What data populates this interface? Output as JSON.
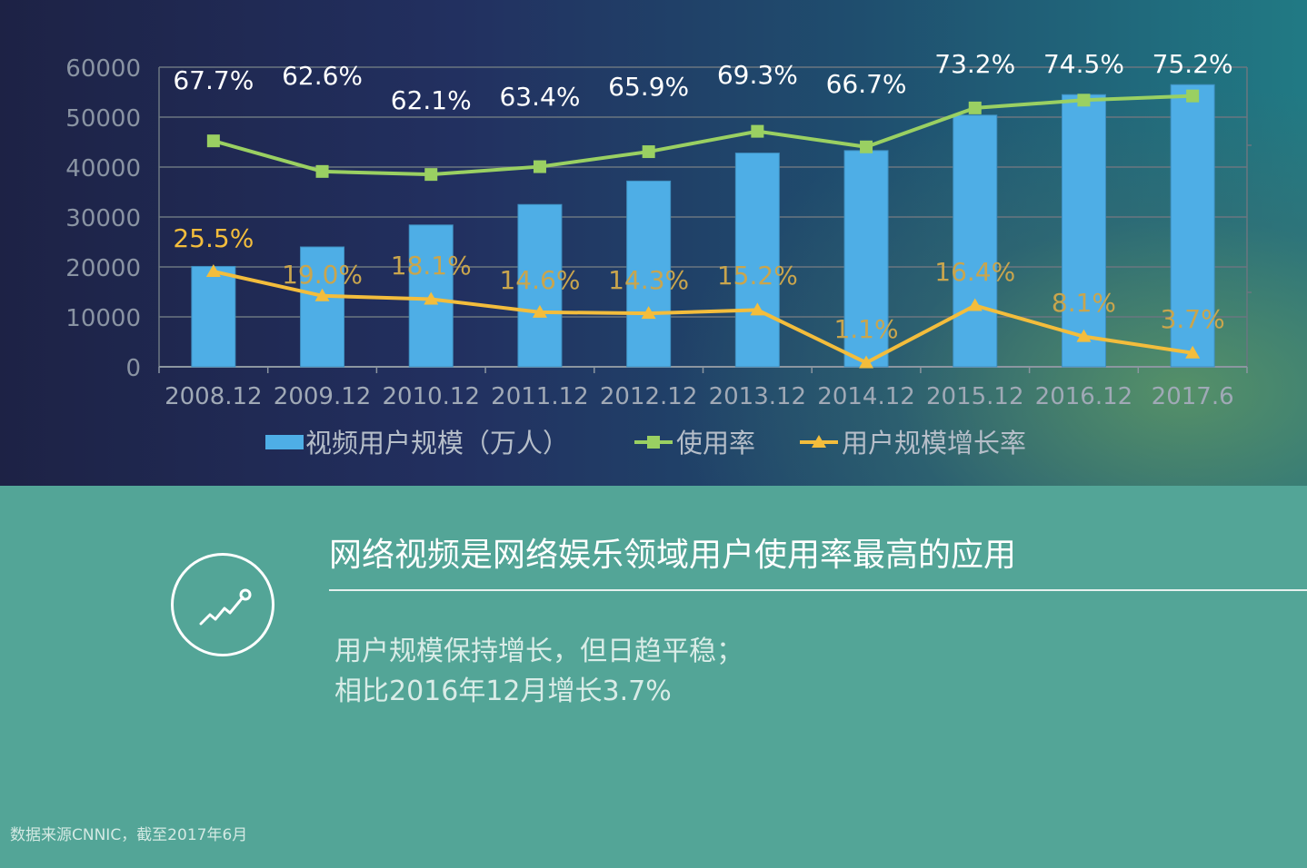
{
  "chart_data": {
    "type": "bar",
    "categories": [
      "2008.12",
      "2009.12",
      "2010.12",
      "2011.12",
      "2012.12",
      "2013.12",
      "2014.12",
      "2015.12",
      "2016.12",
      "2017.6"
    ],
    "y_ticks": [
      "0",
      "10000",
      "20000",
      "30000",
      "40000",
      "50000",
      "60000"
    ],
    "ylim": [
      0,
      60000
    ],
    "grid": true,
    "legend_position": "bottom",
    "series": [
      {
        "name": "视频用户规模（万人）",
        "type": "bar",
        "color": "#4eaee6",
        "values": [
          20100,
          24000,
          28400,
          32500,
          37200,
          42800,
          43300,
          50400,
          54500,
          56500
        ]
      },
      {
        "name": "使用率",
        "type": "line",
        "marker": "square",
        "color": "#9ad062",
        "values": [
          67.7,
          62.6,
          62.1,
          63.4,
          65.9,
          69.3,
          66.7,
          73.2,
          74.5,
          75.2
        ],
        "labels": [
          "67.7%",
          "62.6%",
          "62.1%",
          "63.4%",
          "65.9%",
          "69.3%",
          "66.7%",
          "73.2%",
          "74.5%",
          "75.2%"
        ]
      },
      {
        "name": "用户规模增长率",
        "type": "line",
        "marker": "triangle",
        "color": "#f3bd3c",
        "values": [
          25.5,
          19.0,
          18.1,
          14.6,
          14.3,
          15.2,
          1.1,
          16.4,
          8.1,
          3.7
        ],
        "labels": [
          "25.5%",
          "19.0%",
          "18.1%",
          "14.6%",
          "14.3%",
          "15.2%",
          "1.1%",
          "16.4%",
          "8.1%",
          "3.7%"
        ]
      }
    ]
  },
  "info": {
    "headline": "网络视频是网络娱乐领域用户使用率最高的应用",
    "line1": "用户规模保持增长，但日趋平稳；",
    "line2": "相比2016年12月增长3.7%",
    "icon": "trend-chart-icon"
  },
  "footer": {
    "source": "数据来源CNNIC，截至2017年6月"
  }
}
